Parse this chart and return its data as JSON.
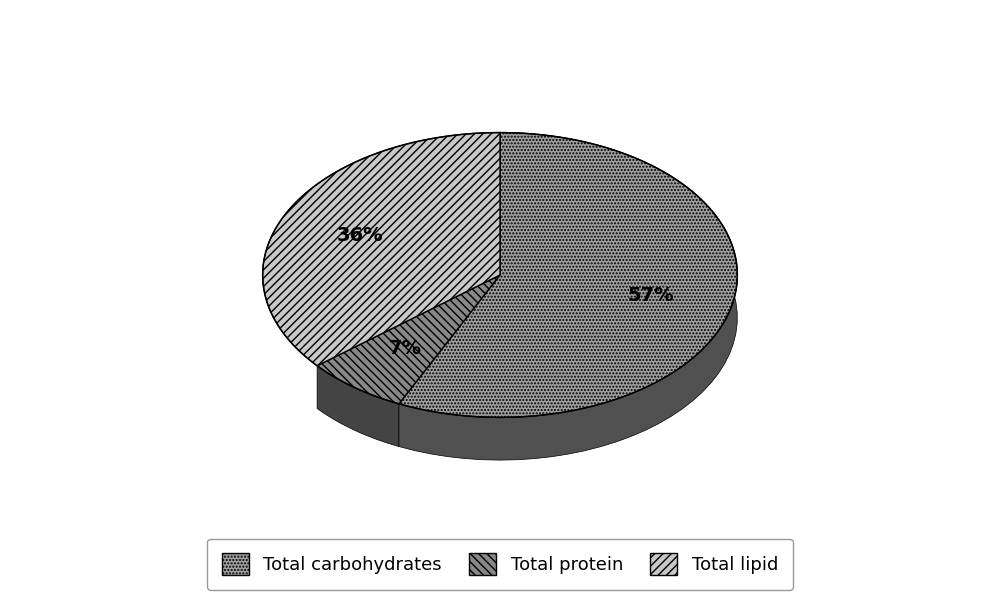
{
  "labels": [
    "Total carbohydrates",
    "Total protein",
    "Total lipid"
  ],
  "values": [
    57,
    7,
    36
  ],
  "colors": [
    "#a0a0a0",
    "#888888",
    "#c8c8c8"
  ],
  "hatches": [
    ".....",
    "\\\\\\\\",
    "////"
  ],
  "startangle": 90,
  "background_color": "#ffffff",
  "figure_bg": "#ffffff",
  "pctdistance": 0.65,
  "legend_fontsize": 13,
  "autopct_fontsize": 14,
  "3d_depth": 0.12
}
